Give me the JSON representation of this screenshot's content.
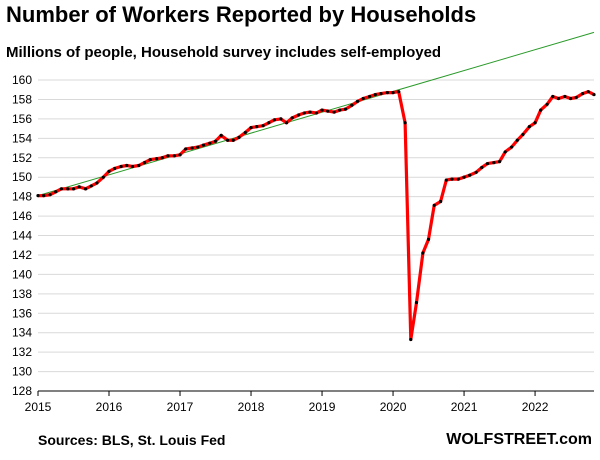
{
  "chart_data": {
    "type": "line",
    "title": "Number of Workers Reported by Households",
    "subtitle": "Millions of people, Household survey includes self-employed",
    "xlabel": "",
    "ylabel": "",
    "ylim": [
      128,
      160
    ],
    "xlim": [
      2015,
      2022.83
    ],
    "yticks": [
      128,
      130,
      132,
      134,
      136,
      138,
      140,
      142,
      144,
      146,
      148,
      150,
      152,
      154,
      156,
      158,
      160
    ],
    "xticks": [
      2015,
      2016,
      2017,
      2018,
      2019,
      2020,
      2021,
      2022
    ],
    "grid": "horizontal",
    "legend": "none",
    "series": [
      {
        "color": "#ff0000",
        "marker_color": "#000000",
        "x": [
          2015.0,
          2015.08,
          2015.17,
          2015.25,
          2015.33,
          2015.42,
          2015.5,
          2015.58,
          2015.67,
          2015.75,
          2015.83,
          2015.92,
          2016.0,
          2016.08,
          2016.17,
          2016.25,
          2016.33,
          2016.42,
          2016.5,
          2016.58,
          2016.67,
          2016.75,
          2016.83,
          2016.92,
          2017.0,
          2017.08,
          2017.17,
          2017.25,
          2017.33,
          2017.42,
          2017.5,
          2017.58,
          2017.67,
          2017.75,
          2017.83,
          2017.92,
          2018.0,
          2018.08,
          2018.17,
          2018.25,
          2018.33,
          2018.42,
          2018.5,
          2018.58,
          2018.67,
          2018.75,
          2018.83,
          2018.92,
          2019.0,
          2019.08,
          2019.17,
          2019.25,
          2019.33,
          2019.42,
          2019.5,
          2019.58,
          2019.67,
          2019.75,
          2019.83,
          2019.92,
          2020.0,
          2020.08,
          2020.17,
          2020.25,
          2020.33,
          2020.42,
          2020.5,
          2020.58,
          2020.67,
          2020.75,
          2020.83,
          2020.92,
          2021.0,
          2021.08,
          2021.17,
          2021.25,
          2021.33,
          2021.42,
          2021.5,
          2021.58,
          2021.67,
          2021.75,
          2021.83,
          2021.92,
          2022.0,
          2022.08,
          2022.17,
          2022.25,
          2022.33,
          2022.42,
          2022.5,
          2022.58,
          2022.67,
          2022.75,
          2022.83
        ],
        "y": [
          148.1,
          148.1,
          148.2,
          148.5,
          148.8,
          148.8,
          148.8,
          149.0,
          148.8,
          149.1,
          149.4,
          150.0,
          150.6,
          150.9,
          151.1,
          151.2,
          151.1,
          151.2,
          151.5,
          151.8,
          151.9,
          152.0,
          152.2,
          152.2,
          152.3,
          152.9,
          153.0,
          153.1,
          153.3,
          153.5,
          153.7,
          154.3,
          153.8,
          153.8,
          154.1,
          154.6,
          155.1,
          155.2,
          155.3,
          155.6,
          155.9,
          156.0,
          155.6,
          156.1,
          156.4,
          156.6,
          156.7,
          156.6,
          156.9,
          156.8,
          156.7,
          156.9,
          157.0,
          157.4,
          157.8,
          158.1,
          158.3,
          158.5,
          158.6,
          158.7,
          158.7,
          158.8,
          155.6,
          133.3,
          137.1,
          142.2,
          143.6,
          147.1,
          147.5,
          149.7,
          149.8,
          149.8,
          150.0,
          150.2,
          150.5,
          151.0,
          151.4,
          151.5,
          151.6,
          152.6,
          153.1,
          153.8,
          154.4,
          155.2,
          155.6,
          156.9,
          157.5,
          158.3,
          158.1,
          158.3,
          158.1,
          158.2,
          158.6,
          158.8,
          158.5
        ]
      },
      {
        "type": "trend-line",
        "color": "#2a9a2a",
        "x": [
          2015.0,
          2022.83
        ],
        "y": [
          148.1,
          164.9
        ]
      }
    ],
    "notes": [
      "Sources: BLS, St. Louis Fed",
      "WOLFSTREET.com"
    ]
  }
}
